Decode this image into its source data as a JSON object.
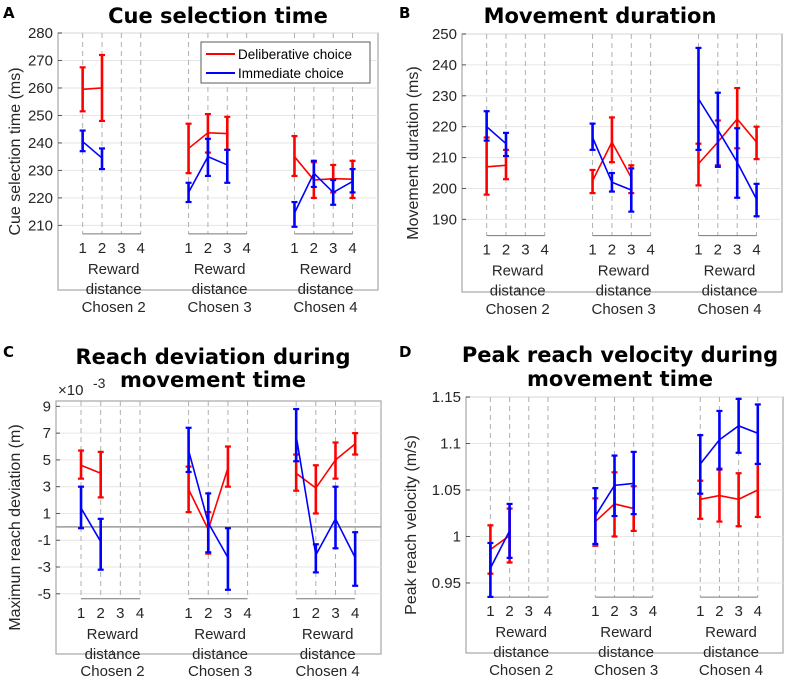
{
  "chart_data": {
    "type": "line",
    "legend": {
      "placement": "top-right of panel A",
      "entries": [
        {
          "name": "Deliberative choice",
          "color": "#ff0000"
        },
        {
          "name": "Immediate choice",
          "color": "#0000ff"
        }
      ]
    },
    "panels": [
      {
        "letter": "A",
        "title": [
          "Cue selection time"
        ],
        "ylabel": "Cue selection time (ms)",
        "multiplier": null,
        "ylim": [
          208,
          280
        ],
        "yticks": [
          210,
          220,
          230,
          240,
          250,
          260,
          270,
          280
        ],
        "ytick_labels": [
          "210",
          "220",
          "230",
          "240",
          "250",
          "260",
          "270",
          "280"
        ],
        "zero_line": false,
        "groups": [
          {
            "label": "Chosen 2",
            "reward_ticks": [
              "1",
              "2",
              "3",
              "4"
            ],
            "xlabel": [
              "Reward",
              "distance"
            ],
            "deliberative": {
              "mean": [
                259.5,
                260
              ],
              "lo": [
                251.5,
                248
              ],
              "hi": [
                267.5,
                272
              ]
            },
            "immediate": {
              "mean": [
                240.5,
                234.5
              ],
              "lo": [
                237,
                230.5
              ],
              "hi": [
                244.5,
                238
              ]
            }
          },
          {
            "label": "Chosen 3",
            "reward_ticks": [
              "1",
              "2",
              "3",
              "4"
            ],
            "xlabel": [
              "Reward",
              "distance"
            ],
            "deliberative": {
              "mean": [
                238,
                243.7,
                243.4
              ],
              "lo": [
                229,
                236.5,
                237.5
              ],
              "hi": [
                247,
                250.5,
                249.5
              ]
            },
            "immediate": {
              "mean": [
                222,
                235,
                232
              ],
              "lo": [
                218.5,
                228,
                225.5
              ],
              "hi": [
                225.5,
                241.5,
                237.5
              ]
            }
          },
          {
            "label": "Chosen 4",
            "reward_ticks": [
              "1",
              "2",
              "3",
              "4"
            ],
            "xlabel": [
              "Reward",
              "distance"
            ],
            "deliberative": {
              "mean": [
                235,
                226.5,
                227,
                226.8
              ],
              "lo": [
                228,
                220,
                222,
                220
              ],
              "hi": [
                242.5,
                233,
                232,
                233.5
              ]
            },
            "immediate": {
              "mean": [
                214.5,
                229,
                222,
                226
              ],
              "lo": [
                209.5,
                224,
                217.5,
                222
              ],
              "hi": [
                218.5,
                233.5,
                226.5,
                230.5
              ]
            }
          }
        ]
      },
      {
        "letter": "B",
        "title": [
          "Movement duration"
        ],
        "ylabel": "Movement duration (ms)",
        "multiplier": null,
        "ylim": [
          185.7,
          250
        ],
        "yticks": [
          190,
          200,
          210,
          220,
          230,
          240,
          250
        ],
        "ytick_labels": [
          "190",
          "200",
          "210",
          "220",
          "230",
          "240",
          "250"
        ],
        "zero_line": false,
        "groups": [
          {
            "label": "Chosen 2",
            "reward_ticks": [
              "1",
              "2",
              "3",
              "4"
            ],
            "xlabel": [
              "Reward",
              "distance"
            ],
            "deliberative": {
              "mean": [
                207,
                207.5
              ],
              "lo": [
                198,
                203
              ],
              "hi": [
                216.5,
                212.5
              ]
            },
            "immediate": {
              "mean": [
                220,
                214.5
              ],
              "lo": [
                215.5,
                210.5
              ],
              "hi": [
                225,
                218
              ]
            }
          },
          {
            "label": "Chosen 3",
            "reward_ticks": [
              "1",
              "2",
              "3",
              "4"
            ],
            "xlabel": [
              "Reward",
              "distance"
            ],
            "deliberative": {
              "mean": [
                202.5,
                215,
                203.5
              ],
              "lo": [
                198.5,
                208.5,
                198.5
              ],
              "hi": [
                206,
                223,
                207.5
              ]
            },
            "immediate": {
              "mean": [
                216.5,
                202,
                199.5
              ],
              "lo": [
                212.5,
                199,
                192.5
              ],
              "hi": [
                221,
                205,
                206.5
              ]
            }
          },
          {
            "label": "Chosen 4",
            "reward_ticks": [
              "1",
              "2",
              "3",
              "4"
            ],
            "xlabel": [
              "Reward",
              "distance"
            ],
            "deliberative": {
              "mean": [
                208,
                215,
                222.5,
                215
              ],
              "lo": [
                201,
                207.5,
                213,
                209.5
              ],
              "hi": [
                214.5,
                222,
                232.5,
                220
              ]
            },
            "immediate": {
              "mean": [
                229,
                219,
                208.5,
                196.5
              ],
              "lo": [
                212.5,
                207,
                197,
                191
              ],
              "hi": [
                245.5,
                231,
                219.5,
                201.5
              ]
            }
          }
        ]
      },
      {
        "letter": "C",
        "title": [
          "Reach deviation during",
          "movement time"
        ],
        "ylabel": "Maximun reach deviation (m)",
        "multiplier": {
          "base": "×10",
          "exp": "-3"
        },
        "ylim": [
          -5.15,
          9.4
        ],
        "yticks": [
          -5,
          -3,
          -1,
          1,
          3,
          5,
          7,
          9
        ],
        "ytick_labels": [
          "-5",
          "-3",
          "-1",
          "1",
          "3",
          "5",
          "7",
          "9"
        ],
        "zero_line": true,
        "groups": [
          {
            "label": "Chosen 2",
            "reward_ticks": [
              "1",
              "2",
              "3",
              "4"
            ],
            "xlabel": [
              "Reward",
              "distance"
            ],
            "deliberative": {
              "mean": [
                4.6,
                4.0
              ],
              "lo": [
                3.6,
                2.2
              ],
              "hi": [
                5.7,
                5.6
              ]
            },
            "immediate": {
              "mean": [
                1.4,
                -1.1
              ],
              "lo": [
                -0.1,
                -3.2
              ],
              "hi": [
                3.0,
                0.6
              ]
            }
          },
          {
            "label": "Chosen 3",
            "reward_ticks": [
              "1",
              "2",
              "3",
              "4"
            ],
            "xlabel": [
              "Reward",
              "distance"
            ],
            "deliberative": {
              "mean": [
                2.8,
                -0.2,
                4.4
              ],
              "lo": [
                1.1,
                -2.0,
                3.0
              ],
              "hi": [
                4.5,
                1.1,
                6.0
              ]
            },
            "immediate": {
              "mean": [
                5.7,
                0.3,
                -2.3
              ],
              "lo": [
                4.1,
                -1.9,
                -4.7
              ],
              "hi": [
                7.4,
                2.5,
                -0.1
              ]
            }
          },
          {
            "label": "Chosen 4",
            "reward_ticks": [
              "1",
              "2",
              "3",
              "4"
            ],
            "xlabel": [
              "Reward",
              "distance"
            ],
            "deliberative": {
              "mean": [
                4.0,
                2.9,
                5.0,
                6.2
              ],
              "lo": [
                2.7,
                1.0,
                3.6,
                5.4
              ],
              "hi": [
                5.4,
                4.6,
                6.3,
                7.0
              ]
            },
            "immediate": {
              "mean": [
                6.8,
                -2.1,
                0.6,
                -2.3
              ],
              "lo": [
                4.9,
                -3.4,
                -1.6,
                -4.4
              ],
              "hi": [
                8.8,
                -1.3,
                3.0,
                -0.4
              ]
            }
          }
        ]
      },
      {
        "letter": "D",
        "title": [
          "Peak reach velocity during",
          "movement time"
        ],
        "ylabel": "Peak reach velocity (m/s)",
        "multiplier": null,
        "ylim": [
          0.938,
          1.15
        ],
        "yticks": [
          0.95,
          1.0,
          1.05,
          1.1,
          1.15
        ],
        "ytick_labels": [
          "0.95",
          "1",
          "1.05",
          "1.1",
          "1.15"
        ],
        "zero_line": false,
        "groups": [
          {
            "label": "Chosen 2",
            "reward_ticks": [
              "1",
              "2",
              "3",
              "4"
            ],
            "xlabel": [
              "Reward",
              "distance"
            ],
            "deliberative": {
              "mean": [
                0.986,
                1.001
              ],
              "lo": [
                0.96,
                0.972
              ],
              "hi": [
                1.012,
                1.03
              ]
            },
            "immediate": {
              "mean": [
                0.966,
                1.006
              ],
              "lo": [
                0.935,
                0.977
              ],
              "hi": [
                0.993,
                1.035
              ]
            }
          },
          {
            "label": "Chosen 3",
            "reward_ticks": [
              "1",
              "2",
              "3",
              "4"
            ],
            "xlabel": [
              "Reward",
              "distance"
            ],
            "deliberative": {
              "mean": [
                1.016,
                1.035,
                1.03
              ],
              "lo": [
                0.99,
                1.0,
                1.006
              ],
              "hi": [
                1.041,
                1.069,
                1.054
              ]
            },
            "immediate": {
              "mean": [
                1.022,
                1.055,
                1.057
              ],
              "lo": [
                0.992,
                1.022,
                1.024
              ],
              "hi": [
                1.052,
                1.087,
                1.091
              ]
            }
          },
          {
            "label": "Chosen 4",
            "reward_ticks": [
              "1",
              "2",
              "3",
              "4"
            ],
            "xlabel": [
              "Reward",
              "distance"
            ],
            "deliberative": {
              "mean": [
                1.04,
                1.044,
                1.04,
                1.05
              ],
              "lo": [
                1.019,
                1.016,
                1.011,
                1.021
              ],
              "hi": [
                1.06,
                1.073,
                1.068,
                1.078
              ]
            },
            "immediate": {
              "mean": [
                1.078,
                1.104,
                1.119,
                1.111
              ],
              "lo": [
                1.046,
                1.072,
                1.09,
                1.078
              ],
              "hi": [
                1.109,
                1.135,
                1.148,
                1.142
              ]
            }
          }
        ]
      }
    ]
  }
}
